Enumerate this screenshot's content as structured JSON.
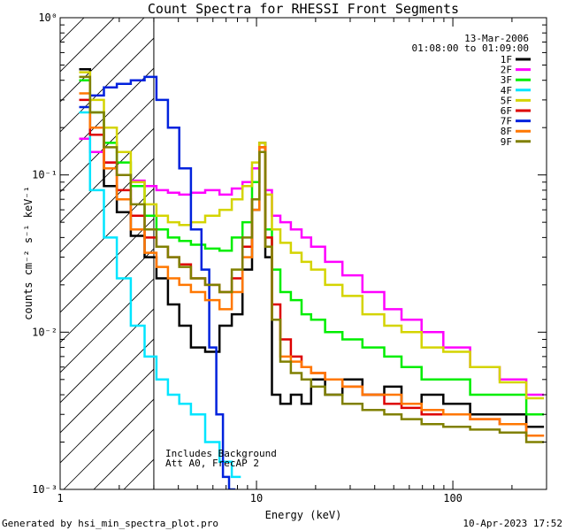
{
  "chart_data": {
    "type": "line",
    "title": "Count Spectra for RHESSI Front Segments",
    "xlabel": "Energy (keV)",
    "ylabel": "counts cm⁻² s⁻¹ keV⁻¹",
    "xscale": "log",
    "yscale": "log",
    "xlim": [
      1,
      300
    ],
    "ylim": [
      0.001,
      1
    ],
    "x_ticks": [
      {
        "value": 1,
        "label": "1"
      },
      {
        "value": 10,
        "label": "10"
      },
      {
        "value": 100,
        "label": "100"
      }
    ],
    "y_ticks": [
      {
        "value": 1,
        "label": "10⁰"
      },
      {
        "value": 0.1,
        "label": "10⁻¹"
      },
      {
        "value": 0.01,
        "label": "10⁻²"
      },
      {
        "value": 0.001,
        "label": "10⁻³"
      }
    ],
    "date": "13-Mar-2006",
    "time_range": "01:08:00 to 01:09:00",
    "annotations": [
      "Includes Background",
      "Att A0, FrecAP 2"
    ],
    "shaded_region": {
      "x_min": 1,
      "x_max": 3,
      "style": "diagonal hatch",
      "note": "below 3 keV"
    },
    "legend_position": "top-right",
    "series": [
      {
        "name": "1F",
        "color": "#000000",
        "points": [
          [
            1.3,
            0.47
          ],
          [
            1.55,
            0.2
          ],
          [
            1.8,
            0.085
          ],
          [
            2.1,
            0.058
          ],
          [
            2.5,
            0.041
          ],
          [
            2.9,
            0.03
          ],
          [
            3.3,
            0.022
          ],
          [
            3.8,
            0.015
          ],
          [
            4.3,
            0.011
          ],
          [
            5,
            0.008
          ],
          [
            6,
            0.0075
          ],
          [
            7,
            0.011
          ],
          [
            8,
            0.013
          ],
          [
            9,
            0.025
          ],
          [
            10,
            0.06
          ],
          [
            10.7,
            0.16
          ],
          [
            11.5,
            0.03
          ],
          [
            12.5,
            0.004
          ],
          [
            14,
            0.0035
          ],
          [
            16,
            0.004
          ],
          [
            18,
            0.0035
          ],
          [
            20,
            0.005
          ],
          [
            25,
            0.004
          ],
          [
            30,
            0.005
          ],
          [
            40,
            0.004
          ],
          [
            50,
            0.0045
          ],
          [
            60,
            0.0035
          ],
          [
            80,
            0.004
          ],
          [
            100,
            0.0035
          ],
          [
            150,
            0.003
          ],
          [
            200,
            0.003
          ],
          [
            280,
            0.0025
          ]
        ]
      },
      {
        "name": "2F",
        "color": "#ff00ff",
        "points": [
          [
            1.3,
            0.17
          ],
          [
            1.55,
            0.14
          ],
          [
            1.8,
            0.12
          ],
          [
            2.1,
            0.1
          ],
          [
            2.5,
            0.092
          ],
          [
            2.9,
            0.085
          ],
          [
            3.3,
            0.08
          ],
          [
            3.8,
            0.077
          ],
          [
            4.3,
            0.075
          ],
          [
            5,
            0.077
          ],
          [
            6,
            0.08
          ],
          [
            7,
            0.075
          ],
          [
            8,
            0.082
          ],
          [
            9,
            0.09
          ],
          [
            10,
            0.11
          ],
          [
            10.7,
            0.15
          ],
          [
            11.5,
            0.08
          ],
          [
            12.5,
            0.055
          ],
          [
            14,
            0.05
          ],
          [
            16,
            0.045
          ],
          [
            18,
            0.04
          ],
          [
            20,
            0.035
          ],
          [
            25,
            0.028
          ],
          [
            30,
            0.023
          ],
          [
            40,
            0.018
          ],
          [
            50,
            0.014
          ],
          [
            60,
            0.012
          ],
          [
            80,
            0.01
          ],
          [
            100,
            0.008
          ],
          [
            150,
            0.006
          ],
          [
            200,
            0.005
          ],
          [
            280,
            0.004
          ]
        ]
      },
      {
        "name": "3F",
        "color": "#00ee00",
        "points": [
          [
            1.3,
            0.4
          ],
          [
            1.55,
            0.25
          ],
          [
            1.8,
            0.16
          ],
          [
            2.1,
            0.12
          ],
          [
            2.5,
            0.085
          ],
          [
            2.9,
            0.055
          ],
          [
            3.3,
            0.045
          ],
          [
            3.8,
            0.04
          ],
          [
            4.3,
            0.038
          ],
          [
            5,
            0.036
          ],
          [
            6,
            0.034
          ],
          [
            7,
            0.033
          ],
          [
            8,
            0.04
          ],
          [
            9,
            0.05
          ],
          [
            10,
            0.09
          ],
          [
            10.7,
            0.14
          ],
          [
            11.5,
            0.045
          ],
          [
            12.5,
            0.025
          ],
          [
            14,
            0.018
          ],
          [
            16,
            0.016
          ],
          [
            18,
            0.013
          ],
          [
            20,
            0.012
          ],
          [
            25,
            0.01
          ],
          [
            30,
            0.009
          ],
          [
            40,
            0.008
          ],
          [
            50,
            0.007
          ],
          [
            60,
            0.006
          ],
          [
            80,
            0.005
          ],
          [
            100,
            0.005
          ],
          [
            150,
            0.004
          ],
          [
            200,
            0.004
          ],
          [
            280,
            0.003
          ]
        ]
      },
      {
        "name": "4F",
        "color": "#00e5ff",
        "points": [
          [
            1.3,
            0.25
          ],
          [
            1.55,
            0.08
          ],
          [
            1.8,
            0.04
          ],
          [
            2.1,
            0.022
          ],
          [
            2.5,
            0.011
          ],
          [
            2.9,
            0.007
          ],
          [
            3.3,
            0.005
          ],
          [
            3.8,
            0.004
          ],
          [
            4.3,
            0.0035
          ],
          [
            5,
            0.003
          ],
          [
            6,
            0.002
          ],
          [
            7,
            0.0015
          ],
          [
            8,
            0.0012
          ]
        ]
      },
      {
        "name": "5F",
        "color": "#d4d400",
        "points": [
          [
            1.3,
            0.45
          ],
          [
            1.55,
            0.3
          ],
          [
            1.8,
            0.2
          ],
          [
            2.1,
            0.14
          ],
          [
            2.5,
            0.09
          ],
          [
            2.9,
            0.065
          ],
          [
            3.3,
            0.055
          ],
          [
            3.8,
            0.05
          ],
          [
            4.3,
            0.048
          ],
          [
            5,
            0.05
          ],
          [
            6,
            0.055
          ],
          [
            7,
            0.06
          ],
          [
            8,
            0.07
          ],
          [
            9,
            0.085
          ],
          [
            10,
            0.12
          ],
          [
            10.7,
            0.16
          ],
          [
            11.5,
            0.075
          ],
          [
            12.5,
            0.045
          ],
          [
            14,
            0.037
          ],
          [
            16,
            0.032
          ],
          [
            18,
            0.028
          ],
          [
            20,
            0.025
          ],
          [
            25,
            0.02
          ],
          [
            30,
            0.017
          ],
          [
            40,
            0.013
          ],
          [
            50,
            0.011
          ],
          [
            60,
            0.01
          ],
          [
            80,
            0.008
          ],
          [
            100,
            0.0075
          ],
          [
            150,
            0.006
          ],
          [
            200,
            0.0048
          ],
          [
            280,
            0.0038
          ]
        ]
      },
      {
        "name": "6F",
        "color": "#dd0000",
        "points": [
          [
            1.3,
            0.3
          ],
          [
            1.55,
            0.18
          ],
          [
            1.8,
            0.12
          ],
          [
            2.1,
            0.08
          ],
          [
            2.5,
            0.055
          ],
          [
            2.9,
            0.04
          ],
          [
            3.3,
            0.035
          ],
          [
            3.8,
            0.03
          ],
          [
            4.3,
            0.027
          ],
          [
            5,
            0.022
          ],
          [
            6,
            0.02
          ],
          [
            7,
            0.018
          ],
          [
            8,
            0.022
          ],
          [
            9,
            0.035
          ],
          [
            10,
            0.07
          ],
          [
            10.7,
            0.15
          ],
          [
            11.5,
            0.04
          ],
          [
            12.5,
            0.015
          ],
          [
            14,
            0.009
          ],
          [
            16,
            0.007
          ],
          [
            18,
            0.006
          ],
          [
            20,
            0.0055
          ],
          [
            25,
            0.005
          ],
          [
            30,
            0.0045
          ],
          [
            40,
            0.004
          ],
          [
            50,
            0.0035
          ],
          [
            60,
            0.0033
          ],
          [
            80,
            0.003
          ],
          [
            100,
            0.003
          ],
          [
            150,
            0.0028
          ],
          [
            200,
            0.0026
          ],
          [
            280,
            0.0022
          ]
        ]
      },
      {
        "name": "7F",
        "color": "#0022dd",
        "points": [
          [
            1.3,
            0.27
          ],
          [
            1.55,
            0.32
          ],
          [
            1.8,
            0.36
          ],
          [
            2.1,
            0.38
          ],
          [
            2.5,
            0.4
          ],
          [
            2.9,
            0.42
          ],
          [
            3.3,
            0.3
          ],
          [
            3.8,
            0.2
          ],
          [
            4.3,
            0.11
          ],
          [
            5,
            0.045
          ],
          [
            5.5,
            0.025
          ],
          [
            6,
            0.008
          ],
          [
            6.5,
            0.003
          ],
          [
            7,
            0.0012
          ],
          [
            7.5,
            0.001
          ]
        ]
      },
      {
        "name": "8F",
        "color": "#ff7700",
        "points": [
          [
            1.3,
            0.33
          ],
          [
            1.55,
            0.2
          ],
          [
            1.8,
            0.11
          ],
          [
            2.1,
            0.07
          ],
          [
            2.5,
            0.045
          ],
          [
            2.9,
            0.032
          ],
          [
            3.3,
            0.026
          ],
          [
            3.8,
            0.022
          ],
          [
            4.3,
            0.02
          ],
          [
            5,
            0.018
          ],
          [
            6,
            0.016
          ],
          [
            7,
            0.014
          ],
          [
            8,
            0.018
          ],
          [
            9,
            0.03
          ],
          [
            10,
            0.06
          ],
          [
            10.7,
            0.15
          ],
          [
            11.5,
            0.035
          ],
          [
            12.5,
            0.012
          ],
          [
            14,
            0.007
          ],
          [
            16,
            0.0065
          ],
          [
            18,
            0.006
          ],
          [
            20,
            0.0055
          ],
          [
            25,
            0.005
          ],
          [
            30,
            0.0045
          ],
          [
            40,
            0.004
          ],
          [
            50,
            0.004
          ],
          [
            60,
            0.0035
          ],
          [
            80,
            0.0032
          ],
          [
            100,
            0.003
          ],
          [
            150,
            0.0028
          ],
          [
            200,
            0.0026
          ],
          [
            280,
            0.0022
          ]
        ]
      },
      {
        "name": "9F",
        "color": "#808000",
        "points": [
          [
            1.3,
            0.42
          ],
          [
            1.55,
            0.25
          ],
          [
            1.8,
            0.15
          ],
          [
            2.1,
            0.1
          ],
          [
            2.5,
            0.065
          ],
          [
            2.9,
            0.045
          ],
          [
            3.3,
            0.035
          ],
          [
            3.8,
            0.03
          ],
          [
            4.3,
            0.026
          ],
          [
            5,
            0.022
          ],
          [
            6,
            0.02
          ],
          [
            7,
            0.018
          ],
          [
            8,
            0.025
          ],
          [
            9,
            0.04
          ],
          [
            10,
            0.07
          ],
          [
            10.7,
            0.14
          ],
          [
            11.5,
            0.035
          ],
          [
            12.5,
            0.012
          ],
          [
            14,
            0.0065
          ],
          [
            16,
            0.0055
          ],
          [
            18,
            0.005
          ],
          [
            20,
            0.0045
          ],
          [
            25,
            0.004
          ],
          [
            30,
            0.0035
          ],
          [
            40,
            0.0032
          ],
          [
            50,
            0.003
          ],
          [
            60,
            0.0028
          ],
          [
            80,
            0.0026
          ],
          [
            100,
            0.0025
          ],
          [
            150,
            0.0024
          ],
          [
            200,
            0.0023
          ],
          [
            280,
            0.002
          ]
        ]
      }
    ]
  },
  "footer": {
    "generated_by": "Generated by hsi_min_spectra_plot.pro",
    "timestamp": "10-Apr-2023 17:52"
  }
}
